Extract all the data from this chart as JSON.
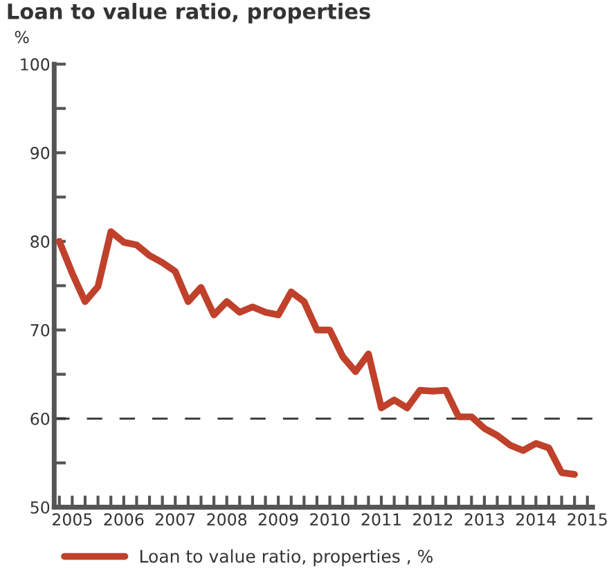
{
  "chart_data": {
    "type": "line",
    "title": "Loan to value ratio, properties",
    "ylabel": "%",
    "x": [
      2004.75,
      2005.0,
      2005.25,
      2005.5,
      2005.75,
      2006.0,
      2006.25,
      2006.5,
      2006.75,
      2007.0,
      2007.25,
      2007.5,
      2007.75,
      2008.0,
      2008.25,
      2008.5,
      2008.75,
      2009.0,
      2009.25,
      2009.5,
      2009.75,
      2010.0,
      2010.25,
      2010.5,
      2010.75,
      2011.0,
      2011.25,
      2011.5,
      2011.75,
      2012.0,
      2012.25,
      2012.5,
      2012.75,
      2013.0,
      2013.25,
      2013.5,
      2013.75,
      2014.0,
      2014.25,
      2014.5,
      2014.75
    ],
    "series": [
      {
        "name": "Loan to value ratio, properties , %",
        "color": "#c0412b",
        "values": [
          80.0,
          76.4,
          73.2,
          74.9,
          81.1,
          79.9,
          79.6,
          78.4,
          77.6,
          76.6,
          73.2,
          74.8,
          71.7,
          73.2,
          72.0,
          72.6,
          72.0,
          71.7,
          74.3,
          73.2,
          70.0,
          70.0,
          67.0,
          65.3,
          67.3,
          61.2,
          62.1,
          61.2,
          63.2,
          63.1,
          63.2,
          60.2,
          60.2,
          58.9,
          58.1,
          57.0,
          56.4,
          57.2,
          56.7,
          53.9,
          53.7
        ]
      }
    ],
    "xlim": [
      2004.65,
      2015.1
    ],
    "xticks": [
      {
        "value": 2004.75,
        "label": null
      },
      2005,
      {
        "value": 2005.25,
        "label": null
      },
      {
        "value": 2005.5,
        "label": null
      },
      {
        "value": 2005.75,
        "label": null
      },
      2006,
      {
        "value": 2006.25,
        "label": null
      },
      {
        "value": 2006.5,
        "label": null
      },
      {
        "value": 2006.75,
        "label": null
      },
      2007,
      {
        "value": 2007.25,
        "label": null
      },
      {
        "value": 2007.5,
        "label": null
      },
      {
        "value": 2007.75,
        "label": null
      },
      2008,
      {
        "value": 2008.25,
        "label": null
      },
      {
        "value": 2008.5,
        "label": null
      },
      {
        "value": 2008.75,
        "label": null
      },
      2009,
      {
        "value": 2009.25,
        "label": null
      },
      {
        "value": 2009.5,
        "label": null
      },
      {
        "value": 2009.75,
        "label": null
      },
      2010,
      {
        "value": 2010.25,
        "label": null
      },
      {
        "value": 2010.5,
        "label": null
      },
      {
        "value": 2010.75,
        "label": null
      },
      2011,
      {
        "value": 2011.25,
        "label": null
      },
      {
        "value": 2011.5,
        "label": null
      },
      {
        "value": 2011.75,
        "label": null
      },
      2012,
      {
        "value": 2012.25,
        "label": null
      },
      {
        "value": 2012.5,
        "label": null
      },
      {
        "value": 2012.75,
        "label": null
      },
      2013,
      {
        "value": 2013.25,
        "label": null
      },
      {
        "value": 2013.5,
        "label": null
      },
      {
        "value": 2013.75,
        "label": null
      },
      2014,
      {
        "value": 2014.25,
        "label": null
      },
      {
        "value": 2014.5,
        "label": null
      },
      {
        "value": 2014.75,
        "label": null
      },
      2015
    ],
    "ylim": [
      50,
      100
    ],
    "yticks": [
      50,
      {
        "value": 55,
        "label": null
      },
      60,
      {
        "value": 65,
        "label": null
      },
      70,
      {
        "value": 75,
        "label": null
      },
      80,
      {
        "value": 85,
        "label": null
      },
      90,
      {
        "value": 95,
        "label": null
      },
      100
    ],
    "ref_lines": [
      {
        "axis": "y",
        "value": 60,
        "label": null,
        "color": "#333333",
        "line_style": "dashed"
      }
    ],
    "grid": false,
    "legend": "bottom",
    "marker": "none",
    "line_style": "solid"
  }
}
